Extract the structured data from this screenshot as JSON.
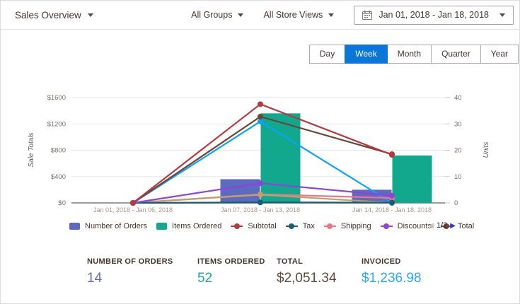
{
  "header": {
    "title": "Sales Overview",
    "group_filter": "All Groups",
    "store_view_filter": "All Store Views",
    "date_range": "Jan 01, 2018 - Jan 18, 2018"
  },
  "period_tabs": [
    {
      "label": "Day",
      "active": false
    },
    {
      "label": "Week",
      "active": true
    },
    {
      "label": "Month",
      "active": false
    },
    {
      "label": "Quarter",
      "active": false
    },
    {
      "label": "Year",
      "active": false
    }
  ],
  "chart_data": {
    "type": "combo bar+line",
    "categories": [
      "Jan 01, 2018 - Jan 06, 2018",
      "Jan 07, 2018 - Jan 13, 2018",
      "Jan 14, 2018 - Jan 18, 2018"
    ],
    "left_axis": {
      "label": "Sale Totals",
      "ticks": [
        "$0",
        "$400",
        "$800",
        "$1200",
        "$1600"
      ],
      "tick_values": [
        0,
        400,
        800,
        1200,
        1600
      ],
      "max": 1600
    },
    "right_axis": {
      "label": "Units",
      "ticks": [
        "0",
        "10",
        "20",
        "30",
        "40"
      ],
      "tick_values": [
        0,
        10,
        20,
        30,
        40
      ],
      "max": 40
    },
    "bar_series": [
      {
        "name": "Number of Orders",
        "axis": "right",
        "color": "#5c6bc0",
        "values": [
          0,
          9,
          5
        ]
      },
      {
        "name": "Items Ordered",
        "axis": "right",
        "color": "#12a88e",
        "values": [
          0,
          34,
          18
        ]
      }
    ],
    "line_series": [
      {
        "name": "Invoiced (legend page 2, unlabeled blue line)",
        "axis": "left",
        "color": "#09a4f8",
        "values": [
          0,
          1236.98,
          0
        ]
      },
      {
        "name": "Shipping",
        "axis": "left",
        "color": "#ed7587",
        "values": [
          0,
          130,
          75
        ]
      },
      {
        "name": "Unlabeled tan line (legend page 2)",
        "axis": "left",
        "color": "#bfa06a",
        "values": [
          0,
          125,
          0
        ]
      },
      {
        "name": "Tax",
        "axis": "left",
        "color": "#175e75",
        "values": [
          0,
          8,
          4
        ]
      },
      {
        "name": "Discounts",
        "axis": "left",
        "color": "#8e44d8",
        "values": [
          0,
          300,
          110
        ]
      },
      {
        "name": "Total",
        "axis": "left",
        "color": "#6d4534",
        "values": [
          0,
          1311,
          740
        ]
      },
      {
        "name": "Subtotal",
        "axis": "left",
        "color": "#b5393f",
        "values": [
          0,
          1500,
          730
        ]
      }
    ],
    "grid": true,
    "legend_position": "bottom"
  },
  "legend": {
    "items": [
      {
        "label": "Number of Orders",
        "marker": "square",
        "color": "#5c6bc0"
      },
      {
        "label": "Items Ordered",
        "marker": "square",
        "color": "#12a88e"
      },
      {
        "label": "Subtotal",
        "marker": "line",
        "color": "#b5393f"
      },
      {
        "label": "Tax",
        "marker": "line",
        "color": "#175e75"
      },
      {
        "label": "Shipping",
        "marker": "line",
        "color": "#ed7587"
      },
      {
        "label": "Discounts",
        "marker": "line",
        "color": "#8e44d8"
      },
      {
        "label": "Total",
        "marker": "line",
        "color": "#6d4534"
      }
    ],
    "pagination": {
      "prev": "◀",
      "page": "1/2",
      "next": "▶"
    }
  },
  "stats": [
    {
      "label": "NUMBER OF ORDERS",
      "value": "14",
      "color": "#5c6bc0"
    },
    {
      "label": "ITEMS ORDERED",
      "value": "52",
      "color": "#23a899"
    },
    {
      "label": "TOTAL",
      "value": "$2,051.34",
      "color": "#604a3d"
    },
    {
      "label": "INVOICED",
      "value": "$1,236.98",
      "color": "#2ba7f2"
    }
  ],
  "colors": {
    "tab_active": "#0b76d9",
    "grid_line": "#e7e7e7",
    "axis_line": "#9c9c9c",
    "tick_label": "#77706a",
    "x_label": "#a4978c"
  }
}
